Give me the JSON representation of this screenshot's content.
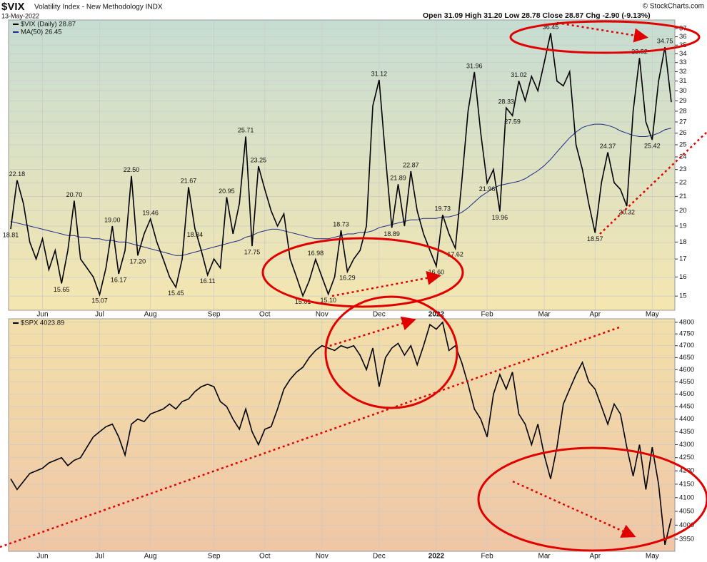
{
  "header": {
    "symbol": "$VIX",
    "name": "Volatility Index - New Methodology INDX",
    "date": "13-May-2022",
    "quote": "Open 31.09  High 31.20  Low 28.78  Close 28.87  Chg -2.90 (-9.13%)",
    "credit": "© StockCharts.com"
  },
  "chart_data": [
    {
      "type": "line",
      "log_y": true,
      "grid": true,
      "legend": "top-left",
      "categories": [
        null,
        null,
        null,
        null,
        null,
        "Jun",
        null,
        null,
        null,
        null,
        null,
        null,
        null,
        null,
        "Jul",
        null,
        null,
        null,
        null,
        null,
        null,
        null,
        "Aug",
        null,
        null,
        null,
        null,
        null,
        null,
        null,
        null,
        null,
        "Sep",
        null,
        null,
        null,
        null,
        null,
        null,
        null,
        "Oct",
        null,
        null,
        null,
        null,
        null,
        null,
        null,
        null,
        "Nov",
        null,
        null,
        null,
        null,
        null,
        null,
        null,
        null,
        "Dec",
        null,
        null,
        null,
        null,
        null,
        null,
        null,
        null,
        "2022",
        null,
        null,
        null,
        null,
        null,
        null,
        null,
        "Feb",
        null,
        null,
        null,
        null,
        null,
        null,
        null,
        null,
        "Mar",
        null,
        null,
        null,
        null,
        null,
        null,
        null,
        "Apr",
        null,
        null,
        null,
        null,
        null,
        null,
        null,
        null,
        "May",
        null,
        null,
        null
      ],
      "series": [
        {
          "name": "$VIX (Daily) 28.87",
          "color": "#000000",
          "values": [
            18.81,
            22.18,
            20.5,
            18.0,
            17.0,
            18.2,
            16.4,
            17.5,
            15.65,
            17.5,
            20.7,
            17.0,
            16.5,
            16.0,
            15.07,
            16.5,
            19.0,
            16.17,
            17.5,
            22.5,
            17.2,
            18.5,
            19.46,
            18.0,
            17.0,
            16.0,
            15.45,
            17.0,
            21.67,
            18.84,
            17.5,
            16.11,
            17.0,
            16.5,
            20.95,
            18.5,
            20.5,
            25.71,
            17.75,
            23.25,
            21.5,
            20.0,
            19.0,
            19.8,
            17.0,
            16.0,
            15.01,
            15.8,
            16.98,
            16.0,
            15.1,
            16.0,
            18.73,
            16.29,
            17.0,
            17.5,
            19.0,
            28.5,
            31.12,
            24.0,
            18.89,
            21.89,
            19.0,
            22.87,
            20.0,
            18.5,
            17.5,
            16.6,
            19.73,
            18.5,
            17.62,
            22.0,
            28.0,
            31.96,
            26.0,
            21.96,
            23.0,
            19.96,
            28.33,
            27.59,
            31.02,
            29.0,
            31.5,
            30.0,
            33.0,
            36.45,
            31.0,
            30.5,
            32.0,
            25.0,
            23.0,
            20.5,
            18.57,
            22.0,
            24.37,
            22.0,
            21.5,
            20.32,
            28.0,
            33.52,
            27.0,
            25.42,
            31.0,
            34.75,
            28.87
          ],
          "value_labels": [
            "18.81",
            "22.18",
            null,
            null,
            null,
            null,
            null,
            null,
            "15.65",
            null,
            "20.70",
            null,
            null,
            null,
            "15.07",
            null,
            "19.00",
            "16.17",
            null,
            "22.50",
            "17.20",
            null,
            "19.46",
            null,
            null,
            null,
            "15.45",
            null,
            "21.67",
            "18.84",
            null,
            "16.11",
            null,
            null,
            "20.95",
            null,
            null,
            "25.71",
            "17.75",
            "23.25",
            null,
            null,
            null,
            null,
            null,
            null,
            "15.01",
            null,
            "16.98",
            null,
            "15.10",
            null,
            "18.73",
            "16.29",
            null,
            null,
            null,
            null,
            "31.12",
            null,
            "18.89",
            "21.89",
            null,
            "22.87",
            null,
            null,
            null,
            "16.60",
            "19.73",
            null,
            "17.62",
            null,
            null,
            "31.96",
            null,
            "21.96",
            null,
            "19.96",
            "28.33",
            "27.59",
            "31.02",
            null,
            null,
            null,
            null,
            "36.45",
            null,
            null,
            null,
            null,
            null,
            null,
            "18.57",
            null,
            "24.37",
            null,
            null,
            "20.32",
            null,
            "33.52",
            null,
            "25.42",
            null,
            "34.75",
            null
          ]
        },
        {
          "name": "MA(50) 26.45",
          "color": "#1f2a8a",
          "values": [
            19.3,
            19.2,
            19.1,
            19.0,
            18.9,
            18.8,
            18.7,
            18.6,
            18.5,
            18.4,
            18.4,
            18.3,
            18.3,
            18.2,
            18.2,
            18.1,
            18.1,
            18.0,
            18.0,
            17.9,
            17.8,
            17.7,
            17.6,
            17.5,
            17.4,
            17.3,
            17.2,
            17.2,
            17.3,
            17.4,
            17.5,
            17.6,
            17.7,
            17.8,
            17.9,
            18.0,
            18.1,
            18.3,
            18.4,
            18.6,
            18.7,
            18.8,
            18.8,
            18.7,
            18.6,
            18.5,
            18.4,
            18.3,
            18.2,
            18.2,
            18.2,
            18.3,
            18.4,
            18.5,
            18.5,
            18.6,
            18.6,
            18.7,
            18.9,
            19.0,
            19.1,
            19.2,
            19.3,
            19.4,
            19.4,
            19.5,
            19.5,
            19.5,
            19.6,
            19.6,
            19.7,
            19.9,
            20.2,
            20.6,
            21.0,
            21.3,
            21.6,
            21.8,
            21.9,
            22.0,
            22.1,
            22.3,
            22.6,
            22.9,
            23.3,
            23.8,
            24.4,
            25.0,
            25.6,
            26.1,
            26.5,
            26.7,
            26.8,
            26.8,
            26.7,
            26.5,
            26.2,
            26.0,
            25.8,
            25.7,
            25.7,
            25.8,
            26.0,
            26.3,
            26.45
          ]
        }
      ],
      "ylim": [
        14.3,
        38.1
      ],
      "yticks": [
        15,
        16,
        17,
        18,
        19,
        20,
        21,
        22,
        23,
        24,
        25,
        26,
        27,
        28,
        29,
        30,
        31,
        32,
        33,
        34,
        35,
        36,
        37
      ]
    },
    {
      "type": "line",
      "log_y": true,
      "grid": true,
      "legend": "top-left",
      "categories": [
        null,
        null,
        null,
        null,
        null,
        "Jun",
        null,
        null,
        null,
        null,
        null,
        null,
        null,
        null,
        "Jul",
        null,
        null,
        null,
        null,
        null,
        null,
        null,
        "Aug",
        null,
        null,
        null,
        null,
        null,
        null,
        null,
        null,
        null,
        "Sep",
        null,
        null,
        null,
        null,
        null,
        null,
        null,
        "Oct",
        null,
        null,
        null,
        null,
        null,
        null,
        null,
        null,
        "Nov",
        null,
        null,
        null,
        null,
        null,
        null,
        null,
        null,
        "Dec",
        null,
        null,
        null,
        null,
        null,
        null,
        null,
        null,
        "2022",
        null,
        null,
        null,
        null,
        null,
        null,
        null,
        "Feb",
        null,
        null,
        null,
        null,
        null,
        null,
        null,
        null,
        "Mar",
        null,
        null,
        null,
        null,
        null,
        null,
        null,
        "Apr",
        null,
        null,
        null,
        null,
        null,
        null,
        null,
        null,
        "May",
        null,
        null,
        null
      ],
      "series": [
        {
          "name": "$SPX 4023.89",
          "color": "#000000",
          "values": [
            4170,
            4130,
            4160,
            4190,
            4200,
            4210,
            4230,
            4240,
            4250,
            4220,
            4240,
            4250,
            4290,
            4330,
            4350,
            4370,
            4380,
            4330,
            4260,
            4380,
            4400,
            4390,
            4420,
            4430,
            4440,
            4460,
            4440,
            4470,
            4480,
            4510,
            4530,
            4540,
            4530,
            4470,
            4450,
            4400,
            4360,
            4440,
            4350,
            4300,
            4360,
            4370,
            4440,
            4520,
            4560,
            4590,
            4610,
            4650,
            4680,
            4700,
            4690,
            4680,
            4700,
            4690,
            4700,
            4660,
            4600,
            4690,
            4530,
            4650,
            4690,
            4710,
            4660,
            4700,
            4620,
            4700,
            4790,
            4770,
            4800,
            4680,
            4700,
            4630,
            4540,
            4440,
            4400,
            4330,
            4500,
            4580,
            4520,
            4590,
            4420,
            4380,
            4300,
            4380,
            4260,
            4170,
            4290,
            4460,
            4520,
            4580,
            4630,
            4550,
            4520,
            4450,
            4380,
            4460,
            4420,
            4290,
            4180,
            4300,
            4130,
            4290,
            4150,
            3930,
            4023.89
          ]
        }
      ],
      "ylim": [
        3907,
        4815
      ],
      "yticks": [
        3950,
        4000,
        4050,
        4100,
        4150,
        4200,
        4250,
        4300,
        4350,
        4400,
        4450,
        4500,
        4550,
        4600,
        4650,
        4700,
        4750,
        4800
      ]
    }
  ]
}
